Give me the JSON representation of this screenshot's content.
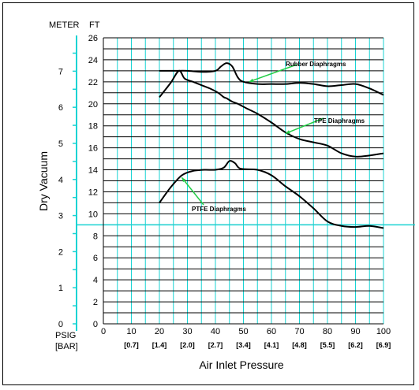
{
  "chart_data": {
    "type": "line",
    "xlabel": "Air Inlet Pressure",
    "ylabel": "Dry Vacuum",
    "ft_unit": "FT",
    "meter_unit": "METER",
    "psig_unit": "PSIG",
    "bar_unit": "[BAR]",
    "xlim": [
      0,
      100
    ],
    "ylim_ft": [
      0,
      26
    ],
    "ylim_meter": [
      0,
      7.925
    ],
    "grid": true,
    "x_ticks": [
      "0",
      "10",
      "20",
      "30",
      "40",
      "50",
      "60",
      "70",
      "80",
      "90",
      "100"
    ],
    "bar_ticks": [
      "[0.7]",
      "[1.4]",
      "[2.0]",
      "[2.7]",
      "[3.4]",
      "[4.1]",
      "[4.8]",
      "[5.5]",
      "[6.2]",
      "[6.9]"
    ],
    "y_ticks_ft": [
      "0",
      "2",
      "4",
      "6",
      "8",
      "10",
      "12",
      "14",
      "16",
      "18",
      "20",
      "22",
      "24",
      "26"
    ],
    "y_ticks_meter": [
      "0",
      "1",
      "2",
      "3",
      "4",
      "5",
      "6",
      "7"
    ],
    "series": [
      {
        "name": "Rubber Diaphragms",
        "x": [
          20,
          24,
          27,
          29,
          32,
          35,
          38,
          41,
          43,
          44,
          46,
          48,
          51,
          55,
          60,
          65,
          70,
          75,
          80,
          85,
          90,
          95,
          100
        ],
        "y": [
          20.6,
          21.9,
          23.0,
          22.3,
          22.0,
          21.7,
          21.4,
          21.0,
          20.6,
          20.5,
          20.2,
          20.0,
          19.6,
          19.1,
          18.3,
          17.4,
          16.8,
          16.5,
          16.2,
          15.5,
          15.2,
          15.3,
          15.5
        ]
      },
      {
        "name": "TPE Diaphragms",
        "x": [
          20,
          25,
          30,
          35,
          40,
          42,
          44,
          46,
          48,
          50,
          55,
          60,
          65,
          70,
          75,
          80,
          85,
          90,
          95,
          100
        ],
        "y": [
          23.0,
          23.0,
          23.0,
          22.9,
          23.0,
          23.4,
          23.7,
          23.4,
          22.4,
          22.0,
          21.8,
          21.8,
          21.8,
          21.9,
          21.8,
          21.6,
          21.7,
          21.8,
          21.4,
          20.8
        ]
      },
      {
        "name": "PTFE Diaphragms",
        "x": [
          20,
          24,
          28,
          32,
          36,
          40,
          43,
          45,
          47,
          49,
          55,
          60,
          65,
          70,
          75,
          80,
          85,
          90,
          95,
          100
        ],
        "y": [
          11.0,
          12.4,
          13.5,
          13.9,
          14.0,
          14.0,
          14.2,
          14.8,
          14.6,
          14.1,
          14.0,
          13.5,
          12.5,
          11.6,
          10.5,
          9.3,
          8.9,
          8.8,
          8.9,
          8.7
        ]
      }
    ],
    "reference_line_ft": 9,
    "annotations": [
      {
        "text": "Rubber Diaphragms",
        "series": 0,
        "point_x": 52,
        "point_y": 22.0
      },
      {
        "text": "TPE Diaphragms",
        "series": 1,
        "point_x": 65,
        "point_y": 17.3
      },
      {
        "text": "PTFE Diaphragms",
        "series": 2,
        "point_x": 28,
        "point_y": 13.3
      }
    ]
  },
  "colors": {
    "grid_vertical": "#19d3d3",
    "grid_horizontal": "#000000",
    "reference_line": "#19d3d3",
    "meter_axis": "#19d3d3",
    "curve": "#000000",
    "arrow": "#22cc44"
  }
}
